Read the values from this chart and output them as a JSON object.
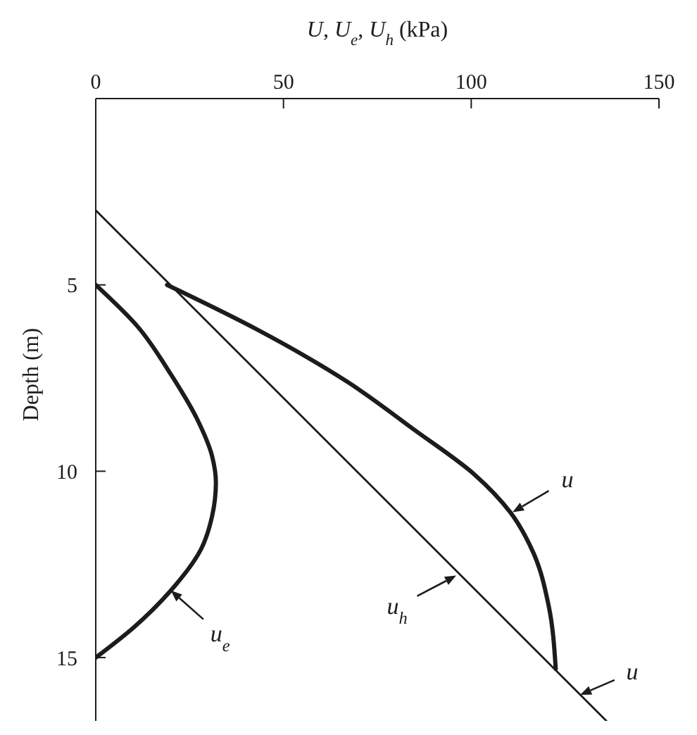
{
  "chart_data": {
    "type": "line",
    "xlabel": "U, U$_{e}$, U$_{h}$ (kPa)",
    "ylabel": "Depth (m)",
    "xlim": [
      0,
      150
    ],
    "xticks": [
      0,
      50,
      100,
      150
    ],
    "ylim": [
      16.7,
      0
    ],
    "yticks": [
      5,
      10,
      15
    ],
    "series": [
      {
        "color": "#1c1c1c",
        "x": [
          19,
          43,
          67,
          85,
          101,
          110.4,
          116.6,
          120.6,
          122.5
        ],
        "values": [
          5,
          6.2,
          7.6,
          8.9,
          10.1,
          11.1,
          12.2,
          13.6,
          15.3
        ]
      },
      {
        "color": "#1c1c1c",
        "x": [
          0,
          11,
          20,
          27,
          31,
          32,
          31,
          28,
          20,
          10,
          0
        ],
        "values": [
          5,
          6.1,
          7.4,
          8.6,
          9.6,
          10.3,
          11.2,
          12.1,
          13.2,
          14.2,
          15
        ]
      },
      {
        "color": "#1c1c1c",
        "x": [
          0,
          136
        ],
        "values": [
          3,
          16.7
        ]
      }
    ],
    "annotations": [
      {
        "text": "u",
        "x": 111,
        "y": 11.1
      },
      {
        "text": "u$_{h}$",
        "x": 96,
        "y": 12.8
      },
      {
        "text": "u$_{e}$",
        "x": 20,
        "y": 13.2
      },
      {
        "text": "u",
        "x": 129,
        "y": 16
      }
    ]
  }
}
